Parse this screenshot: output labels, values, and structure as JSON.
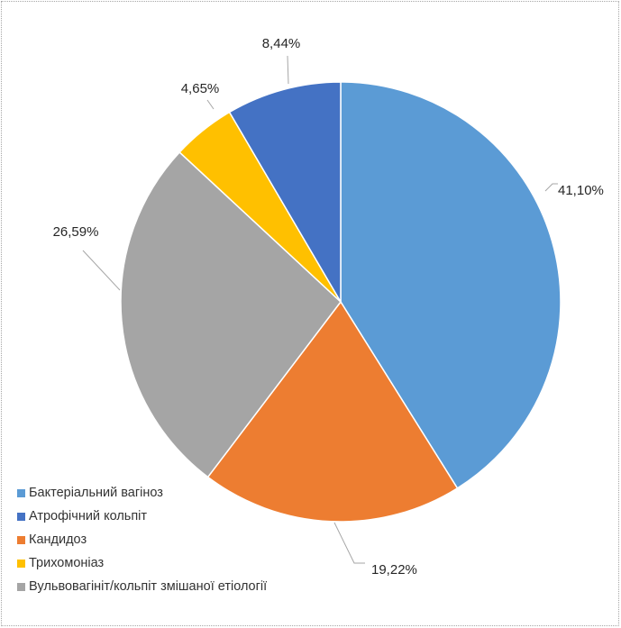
{
  "chart_data": {
    "type": "pie",
    "title": "",
    "categories": [
      "Бактеріальний вагіноз",
      "Кандидоз",
      "Вульвовагініт/кольпіт змішаної етіології",
      "Трихомоніаз",
      "Атрофічний кольпіт"
    ],
    "values": [
      41.1,
      19.22,
      26.59,
      4.65,
      8.44
    ],
    "data_labels": [
      "41,10%",
      "19,22%",
      "26,59%",
      "4,65%",
      "8,44%"
    ],
    "colors": [
      "#5b9bd5",
      "#ed7d31",
      "#a5a5a5",
      "#ffc000",
      "#4472c4"
    ],
    "start_angle_deg": 0,
    "direction": "clockwise",
    "legend_position": "bottom-left"
  },
  "legend": [
    {
      "label": "Бактеріальний вагіноз",
      "color": "#5b9bd5"
    },
    {
      "label": "Атрофічний кольпіт",
      "color": "#4472c4"
    },
    {
      "label": "Кандидоз",
      "color": "#ed7d31"
    },
    {
      "label": "Трихомоніаз",
      "color": "#ffc000"
    },
    {
      "label": "Вульвовагініт/кольпіт змішаної етіології",
      "color": "#a5a5a5"
    }
  ]
}
